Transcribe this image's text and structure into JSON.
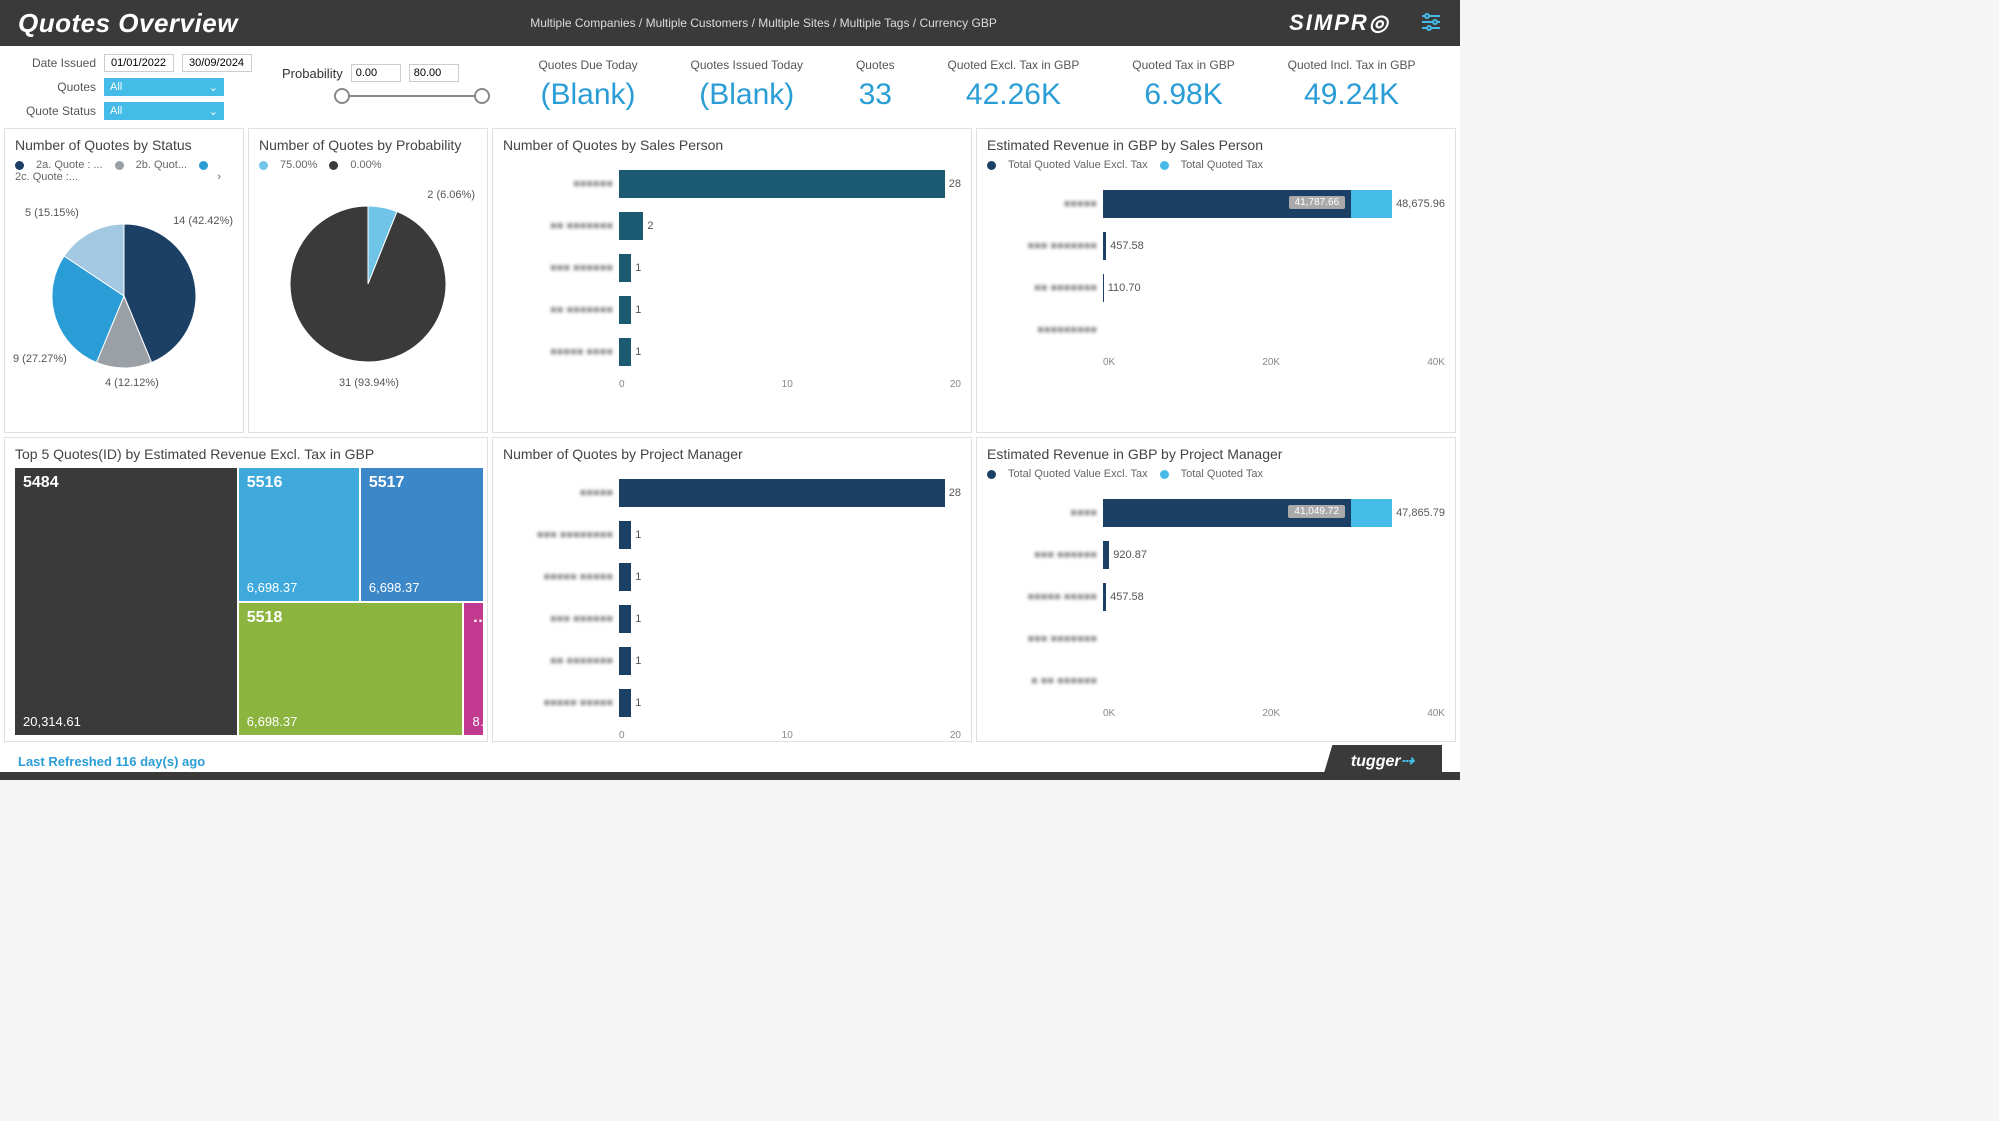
{
  "header": {
    "title": "Quotes Overview",
    "breadcrumb": "Multiple Companies / Multiple Customers / Multiple Sites / Multiple Tags / Currency GBP",
    "logo": "SIMPR",
    "logo_icon_color": "#ffffff",
    "settings_color": "#45bce7"
  },
  "filters": {
    "date_issued_label": "Date Issued",
    "date_from": "01/01/2022",
    "date_to": "30/09/2024",
    "quotes_label": "Quotes",
    "quotes_value": "All",
    "status_label": "Quote Status",
    "status_value": "All",
    "probability_label": "Probability",
    "prob_min": "0.00",
    "prob_max": "80.00"
  },
  "kpis": [
    {
      "label": "Quotes Due Today",
      "value": "(Blank)"
    },
    {
      "label": "Quotes Issued Today",
      "value": "(Blank)"
    },
    {
      "label": "Quotes",
      "value": "33"
    },
    {
      "label": "Quoted Excl. Tax in GBP",
      "value": "42.26K"
    },
    {
      "label": "Quoted Tax in GBP",
      "value": "6.98K"
    },
    {
      "label": "Quoted Incl. Tax in GBP",
      "value": "49.24K"
    }
  ],
  "pie_status": {
    "title": "Number of Quotes by Status",
    "legend": [
      {
        "label": "2a. Quote : ...",
        "color": "#1c3f66"
      },
      {
        "label": "2b. Quot...",
        "color": "#9aa0a6"
      },
      {
        "label": "2c. Quote :...",
        "color": "#2a9dd6"
      }
    ],
    "label_arrow": "›",
    "slices": [
      {
        "value": 14,
        "pct": "42.42%",
        "color": "#1c3f66",
        "label": "14 (42.42%)"
      },
      {
        "value": 4,
        "pct": "12.12%",
        "color": "#9aa0a6",
        "label": "4 (12.12%)"
      },
      {
        "value": 9,
        "pct": "27.27%",
        "color": "#2a9dd6",
        "label": "9 (27.27%)"
      },
      {
        "value": 5,
        "pct": "15.15%",
        "color": "#a3c9e2",
        "label": "5 (15.15%)"
      }
    ]
  },
  "pie_prob": {
    "title": "Number of Quotes by Probability",
    "legend": [
      {
        "label": "75.00%",
        "color": "#6fc4e8"
      },
      {
        "label": "0.00%",
        "color": "#3a3a3a"
      }
    ],
    "slices": [
      {
        "value": 2,
        "pct": "6.06%",
        "color": "#6fc4e8",
        "label": "2 (6.06%)"
      },
      {
        "value": 31,
        "pct": "93.94%",
        "color": "#3a3a3a",
        "label": "31 (93.94%)"
      }
    ]
  },
  "quotes_by_salesperson": {
    "title": "Number of Quotes by Sales Person",
    "max": 28,
    "bar_color": "#1c5a71",
    "rows": [
      {
        "cat": "■■■■■■",
        "value": 28
      },
      {
        "cat": "■■ ■■■■■■■",
        "value": 2
      },
      {
        "cat": "■■■ ■■■■■■",
        "value": 1
      },
      {
        "cat": "■■ ■■■■■■■",
        "value": 1
      },
      {
        "cat": "■■■■■ ■■■■",
        "value": 1
      }
    ],
    "axis": [
      "0",
      "10",
      "20"
    ]
  },
  "revenue_by_salesperson": {
    "title": "Estimated Revenue in GBP by Sales Person",
    "legend": [
      {
        "label": "Total Quoted Value Excl. Tax",
        "color": "#1c3f66"
      },
      {
        "label": "Total Quoted Tax",
        "color": "#45bce7"
      }
    ],
    "max": 50000,
    "rows": [
      {
        "cat": "■■■■■",
        "excl": 41787.66,
        "tax": 6888.3,
        "excl_label": "41,787.66",
        "total_label": "48,675.96"
      },
      {
        "cat": "■■■ ■■■■■■■",
        "excl": 457.58,
        "tax": 0,
        "excl_label": "457.58",
        "total_label": ""
      },
      {
        "cat": "■■ ■■■■■■■",
        "excl": 110.7,
        "tax": 0,
        "excl_label": "110.70",
        "total_label": ""
      },
      {
        "cat": "■■■■■■■■■",
        "excl": 0,
        "tax": 0,
        "excl_label": "",
        "total_label": ""
      }
    ],
    "axis": [
      "0K",
      "20K",
      "40K"
    ]
  },
  "treemap": {
    "title": "Top 5 Quotes(ID) by Estimated Revenue Excl. Tax in GBP",
    "cells": [
      {
        "id": "5484",
        "rev": "20,314.61",
        "color": "#3a3a3a"
      },
      {
        "id": "5516",
        "rev": "6,698.37",
        "color": "#3fa9db"
      },
      {
        "id": "5517",
        "rev": "6,698.37",
        "color": "#3b87c8"
      },
      {
        "id": "5518",
        "rev": "6,698.37",
        "color": "#8bb53e"
      },
      {
        "id": "…",
        "rev": "8…",
        "color": "#c13a8f"
      }
    ]
  },
  "quotes_by_pm": {
    "title": "Number of Quotes by Project Manager",
    "max": 28,
    "bar_color": "#1c3f66",
    "rows": [
      {
        "cat": "■■■■■",
        "value": 28
      },
      {
        "cat": "■■■ ■■■■■■■■",
        "value": 1
      },
      {
        "cat": "■■■■■ ■■■■■",
        "value": 1
      },
      {
        "cat": "■■■ ■■■■■■",
        "value": 1
      },
      {
        "cat": "■■ ■■■■■■■",
        "value": 1
      },
      {
        "cat": "■■■■■ ■■■■■",
        "value": 1
      }
    ],
    "axis": [
      "0",
      "10",
      "20"
    ]
  },
  "revenue_by_pm": {
    "title": "Estimated Revenue in GBP by Project Manager",
    "legend": [
      {
        "label": "Total Quoted Value Excl. Tax",
        "color": "#1c3f66"
      },
      {
        "label": "Total Quoted Tax",
        "color": "#45bce7"
      }
    ],
    "max": 50000,
    "rows": [
      {
        "cat": "■■■■",
        "excl": 41049.72,
        "tax": 6816.07,
        "excl_label": "41,049.72",
        "total_label": "47,865.79"
      },
      {
        "cat": "■■■ ■■■■■■",
        "excl": 920.87,
        "tax": 0,
        "excl_label": "920.87",
        "total_label": ""
      },
      {
        "cat": "■■■■■ ■■■■■",
        "excl": 457.58,
        "tax": 0,
        "excl_label": "457.58",
        "total_label": ""
      },
      {
        "cat": "■■■ ■■■■■■■",
        "excl": 0,
        "tax": 0,
        "excl_label": "",
        "total_label": ""
      },
      {
        "cat": "■ ■■ ■■■■■■",
        "excl": 0,
        "tax": 0,
        "excl_label": "",
        "total_label": ""
      }
    ],
    "axis": [
      "0K",
      "20K",
      "40K"
    ]
  },
  "footer": {
    "refresh": "Last Refreshed 116 day(s) ago",
    "brand": "tugger"
  },
  "colors": {
    "accent": "#45bce7",
    "kpi": "#2a9dd6",
    "dark": "#3a3a3a",
    "navy": "#1c3f66"
  }
}
